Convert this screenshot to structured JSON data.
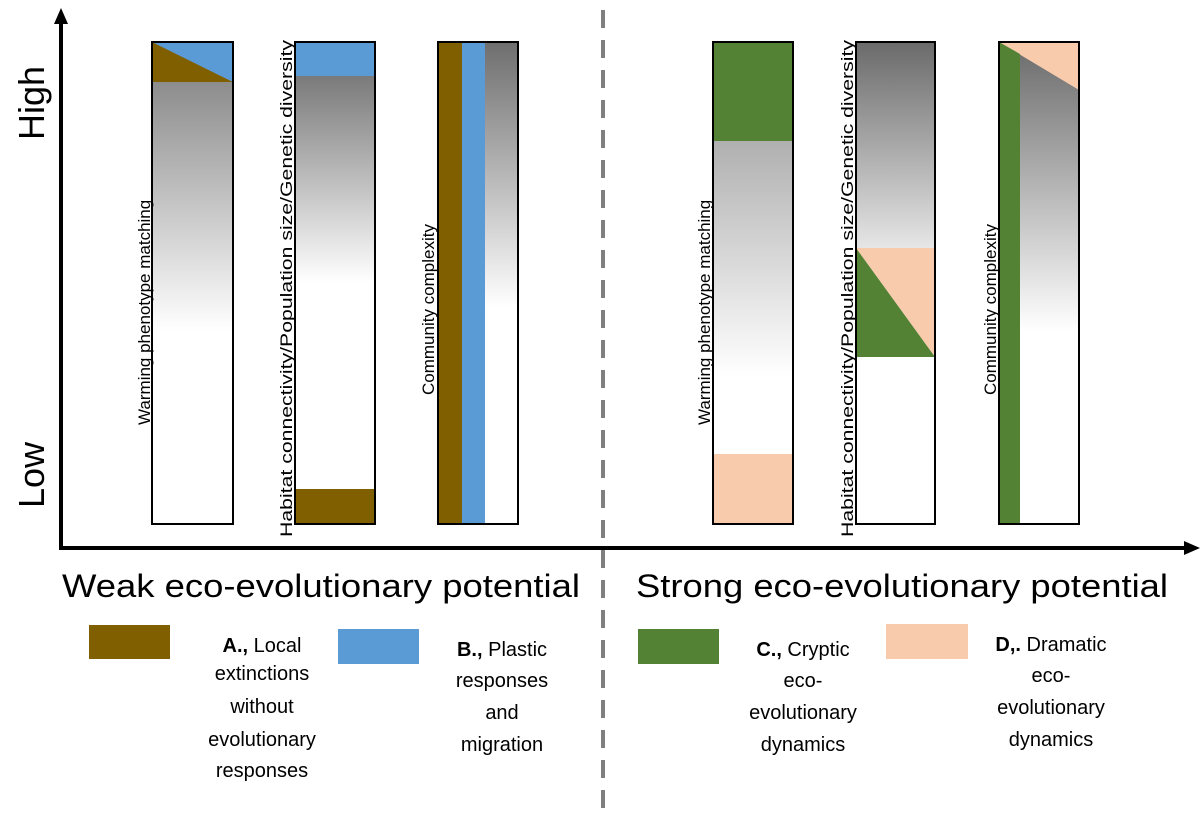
{
  "axis": {
    "y_high": "High",
    "y_low": "Low"
  },
  "panels": {
    "weak_title": "Weak eco-evolutionary potential",
    "strong_title": "Strong eco-evolutionary potential"
  },
  "bars": {
    "warming": "Warming phenotype matching",
    "habitat": "Habitat connectivity/Population size/Genetic diversity",
    "community": "Community complexity"
  },
  "legend": [
    {
      "key": "A.,",
      "text": "Local extinctions without evolutionary responses",
      "color": "#7f5f00"
    },
    {
      "key": "B.,",
      "text": "Plastic responses and migration",
      "color": "#5b9bd5"
    },
    {
      "key": "C.,",
      "text": "Cryptic eco-evolutionary dynamics",
      "color": "#548235"
    },
    {
      "key": "D,.",
      "text": "Dramatic eco-evolutionary dynamics",
      "color": "#f8cbad"
    }
  ],
  "colors": {
    "brown": "#7f5f00",
    "blue": "#5b9bd5",
    "green": "#548235",
    "peach": "#f8cbad",
    "divider": "#7f7f7f"
  }
}
